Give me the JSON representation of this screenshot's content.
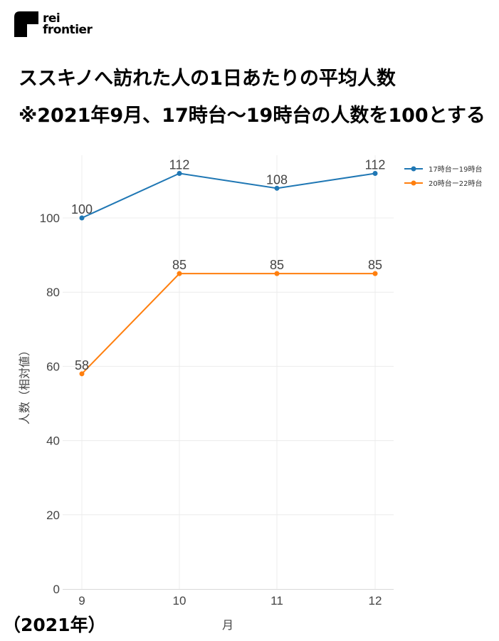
{
  "logo": {
    "line1": "rei",
    "line2": "frontier"
  },
  "title": {
    "line1": "ススキノへ訪れた人の1日あたりの平均人数",
    "line2": "※2021年9月、17時台〜19時台の人数を100とする"
  },
  "footnote": "（2021年）",
  "colors": {
    "series1": "#1f77b4",
    "series2": "#ff7f0e",
    "grid": "#ececec",
    "axis": "#d9d9d9"
  },
  "chart_data": {
    "type": "line",
    "x": [
      9,
      10,
      11,
      12
    ],
    "categories": [
      "9",
      "10",
      "11",
      "12"
    ],
    "xlabel": "月",
    "ylabel": "人数（相対値）",
    "ylim": [
      0,
      120
    ],
    "yticks": [
      0,
      20,
      40,
      60,
      80,
      100
    ],
    "grid": true,
    "legend_position": "top-right",
    "series": [
      {
        "name": "17時台ー19時台",
        "values": [
          100,
          112,
          108,
          112
        ],
        "labels": [
          "100",
          "112",
          "108",
          "112"
        ],
        "color": "#1f77b4"
      },
      {
        "name": "20時台ー22時台",
        "values": [
          58,
          85,
          85,
          85
        ],
        "labels": [
          "58",
          "85",
          "85",
          "85"
        ],
        "color": "#ff7f0e"
      }
    ]
  }
}
